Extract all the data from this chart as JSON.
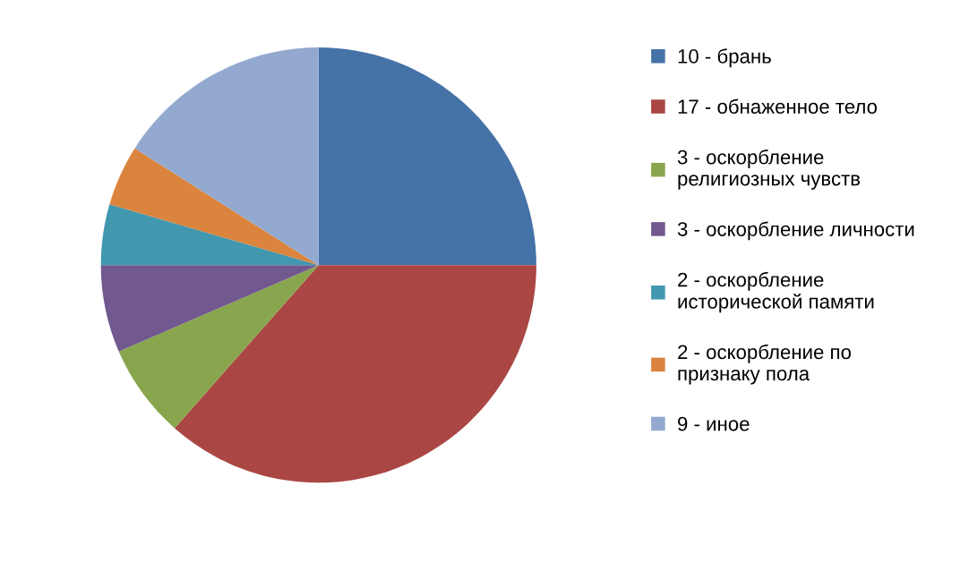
{
  "chart_data": {
    "type": "pie",
    "categories": [
      "10 - брань",
      "17 - обнаженное тело",
      "3 - оскорбление\nрелигиозных чувств",
      "3 - оскорбление личности",
      "2 - оскорбление\nисторической памяти",
      "2 - оскорбление по\nпризнаку пола",
      "9 - иное"
    ],
    "values": [
      25,
      36.5,
      7,
      6.5,
      4.5,
      4.5,
      16
    ],
    "colors": [
      "#4572a7",
      "#aa4643",
      "#89a54e",
      "#71588f",
      "#4198af",
      "#db843d",
      "#93a9cf"
    ],
    "legend": "right"
  }
}
